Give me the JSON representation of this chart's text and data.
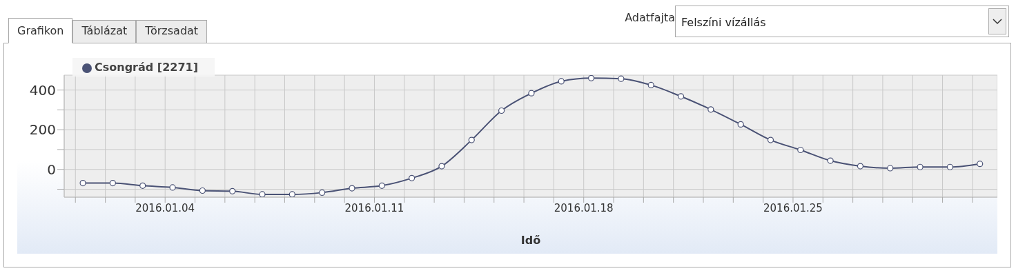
{
  "chart_data": {
    "type": "line",
    "xlabel": "Idő",
    "annotations": [
      "Grafikon",
      "Táblázat",
      "Törzsadat",
      "Adatfajta",
      "Felszíni vízállás"
    ],
    "x": [
      "2016-01-01T06:00",
      "2016-01-02T06:00",
      "2016-01-03T06:00",
      "2016-01-04T06:00",
      "2016-01-05T06:00",
      "2016-01-06T06:00",
      "2016-01-07T06:00",
      "2016-01-08T06:00",
      "2016-01-09T06:00",
      "2016-01-10T06:00",
      "2016-01-11T06:00",
      "2016-01-12T06:00",
      "2016-01-13T06:00",
      "2016-01-14T06:00",
      "2016-01-15T06:00",
      "2016-01-16T06:00",
      "2016-01-17T06:00",
      "2016-01-18T06:00",
      "2016-01-19T06:00",
      "2016-01-20T06:00",
      "2016-01-21T06:00",
      "2016-01-22T06:00",
      "2016-01-23T06:00",
      "2016-01-24T06:00",
      "2016-01-25T06:00",
      "2016-01-26T06:00",
      "2016-01-27T06:00",
      "2016-01-28T06:00",
      "2016-01-29T06:00",
      "2016-01-30T06:00",
      "2016-01-31T06:00"
    ],
    "series": [
      {
        "name": "Csongrád [2271]",
        "color": "#4a5275",
        "values": [
          -69,
          -69,
          -82,
          -91,
          -107,
          -110,
          -126,
          -126,
          -117,
          -95,
          -82,
          -44,
          16,
          148,
          296,
          384,
          444,
          460,
          457,
          425,
          368,
          302,
          227,
          148,
          98,
          44,
          16,
          6,
          12,
          12,
          28
        ]
      }
    ],
    "xlim": [
      "2015-12-31T15:00",
      "2016-01-31T20:00"
    ],
    "xticks": [
      {
        "value": "2016-01-01",
        "label": null
      },
      {
        "value": "2016-01-02",
        "label": null
      },
      {
        "value": "2016-01-03",
        "label": null
      },
      {
        "value": "2016-01-04",
        "label": "2016.01.04"
      },
      {
        "value": "2016-01-05",
        "label": null
      },
      {
        "value": "2016-01-06",
        "label": null
      },
      {
        "value": "2016-01-07",
        "label": null
      },
      {
        "value": "2016-01-08",
        "label": null
      },
      {
        "value": "2016-01-09",
        "label": null
      },
      {
        "value": "2016-01-10",
        "label": null
      },
      {
        "value": "2016-01-11",
        "label": "2016.01.11"
      },
      {
        "value": "2016-01-12",
        "label": null
      },
      {
        "value": "2016-01-13",
        "label": null
      },
      {
        "value": "2016-01-14",
        "label": null
      },
      {
        "value": "2016-01-15",
        "label": null
      },
      {
        "value": "2016-01-16",
        "label": null
      },
      {
        "value": "2016-01-17",
        "label": null
      },
      {
        "value": "2016-01-18",
        "label": "2016.01.18"
      },
      {
        "value": "2016-01-19",
        "label": null
      },
      {
        "value": "2016-01-20",
        "label": null
      },
      {
        "value": "2016-01-21",
        "label": null
      },
      {
        "value": "2016-01-22",
        "label": null
      },
      {
        "value": "2016-01-23",
        "label": null
      },
      {
        "value": "2016-01-24",
        "label": null
      },
      {
        "value": "2016-01-25",
        "label": "2016.01.25"
      },
      {
        "value": "2016-01-26",
        "label": null
      },
      {
        "value": "2016-01-27",
        "label": null
      },
      {
        "value": "2016-01-28",
        "label": null
      },
      {
        "value": "2016-01-29",
        "label": null
      },
      {
        "value": "2016-01-30",
        "label": null
      },
      {
        "value": "2016-01-31",
        "label": null
      }
    ],
    "ylim": [
      -140,
      475
    ],
    "yticks": [
      {
        "value": -100,
        "label": null
      },
      0,
      {
        "value": 100,
        "label": null
      },
      200,
      {
        "value": 300,
        "label": null
      },
      400
    ],
    "grid": true,
    "legend": "top left",
    "marker": "circle"
  }
}
